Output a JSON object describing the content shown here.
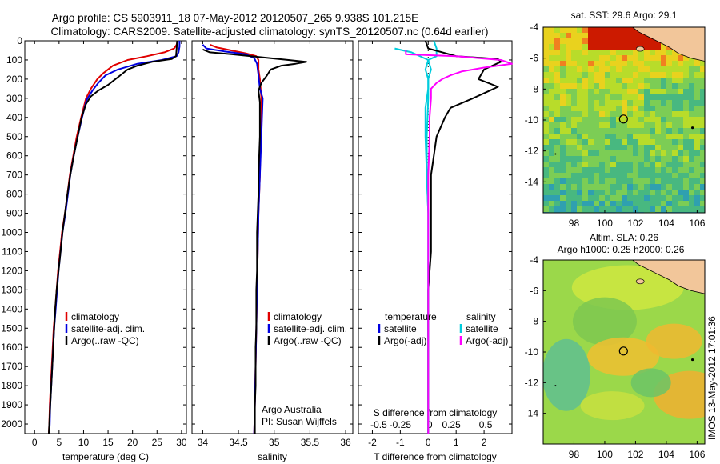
{
  "header": {
    "line1": "Argo profile: CS 5903911_18 07-May-2012 20120507_265 9.938S 101.215E",
    "line2": "Climatology: CARS2009. Satellite-adjusted climatology: synTS_20120507.nc (0.64d earlier)"
  },
  "footer_vertical": "IMOS 13-May-2012 17:01:36",
  "colors": {
    "climatology": "#e00000",
    "satellite": "#0000e0",
    "argo": "#000000",
    "argo_salinity": "#ff00ff",
    "satellite_salinity": "#00e0e0"
  },
  "chart_data": [
    {
      "type": "line",
      "xlabel": "temperature (deg C)",
      "ylabel": "",
      "xlim": [
        -2,
        31
      ],
      "ylim": [
        2050,
        0
      ],
      "xticks": [
        0,
        5,
        10,
        15,
        20,
        25,
        30
      ],
      "yticks": [
        0,
        100,
        200,
        300,
        400,
        500,
        600,
        700,
        800,
        900,
        1000,
        1100,
        1200,
        1300,
        1400,
        1500,
        1600,
        1700,
        1800,
        1900,
        2000
      ],
      "legend": [
        "climatology",
        "satellite-adj. clim.",
        "Argo(..raw -QC)"
      ],
      "series": [
        {
          "name": "climatology",
          "points": [
            [
              29.2,
              0
            ],
            [
              29.0,
              20
            ],
            [
              28.5,
              40
            ],
            [
              26.5,
              60
            ],
            [
              23,
              80
            ],
            [
              19,
              100
            ],
            [
              16,
              130
            ],
            [
              14,
              170
            ],
            [
              12.8,
              200
            ],
            [
              11.5,
              250
            ],
            [
              10.5,
              300
            ],
            [
              9.5,
              400
            ],
            [
              8.6,
              500
            ],
            [
              7.9,
              600
            ],
            [
              7.2,
              700
            ],
            [
              6.7,
              800
            ],
            [
              6.2,
              900
            ],
            [
              5.6,
              1000
            ],
            [
              5.2,
              1100
            ],
            [
              4.8,
              1200
            ],
            [
              4.5,
              1300
            ],
            [
              4.2,
              1400
            ],
            [
              3.9,
              1500
            ],
            [
              3.7,
              1600
            ],
            [
              3.5,
              1700
            ],
            [
              3.3,
              1800
            ],
            [
              3.1,
              1900
            ],
            [
              3.0,
              2000
            ],
            [
              2.9,
              2050
            ]
          ]
        },
        {
          "name": "satellite-adj. clim.",
          "points": [
            [
              29.6,
              0
            ],
            [
              29.6,
              30
            ],
            [
              29.4,
              60
            ],
            [
              29,
              80
            ],
            [
              26,
              100
            ],
            [
              21,
              120
            ],
            [
              17,
              150
            ],
            [
              14.5,
              180
            ],
            [
              13,
              220
            ],
            [
              11.8,
              260
            ],
            [
              10.6,
              310
            ],
            [
              9.7,
              400
            ],
            [
              8.8,
              500
            ],
            [
              8.0,
              600
            ],
            [
              7.3,
              700
            ],
            [
              6.8,
              800
            ],
            [
              6.3,
              900
            ],
            [
              5.7,
              1000
            ],
            [
              5.3,
              1100
            ],
            [
              4.9,
              1200
            ],
            [
              4.6,
              1300
            ],
            [
              4.3,
              1400
            ],
            [
              4.0,
              1500
            ],
            [
              3.8,
              1600
            ],
            [
              3.6,
              1700
            ],
            [
              3.4,
              1800
            ],
            [
              3.2,
              1900
            ],
            [
              3.1,
              2000
            ],
            [
              3.0,
              2050
            ]
          ]
        },
        {
          "name": "Argo(..raw -QC)",
          "points": [
            [
              29.1,
              0
            ],
            [
              29.0,
              40
            ],
            [
              28.9,
              80
            ],
            [
              28,
              95
            ],
            [
              24,
              110
            ],
            [
              21,
              130
            ],
            [
              19,
              150
            ],
            [
              17.5,
              180
            ],
            [
              16,
              210
            ],
            [
              15,
              230
            ],
            [
              13,
              260
            ],
            [
              11.5,
              290
            ],
            [
              10.5,
              330
            ],
            [
              9.6,
              400
            ],
            [
              8.8,
              500
            ],
            [
              8.0,
              600
            ],
            [
              7.3,
              700
            ],
            [
              6.7,
              800
            ],
            [
              6.2,
              900
            ],
            [
              5.7,
              1000
            ],
            [
              5.3,
              1100
            ],
            [
              4.9,
              1200
            ],
            [
              4.5,
              1300
            ],
            [
              4.2,
              1400
            ],
            [
              4.0,
              1500
            ],
            [
              3.8,
              1600
            ],
            [
              3.6,
              1700
            ],
            [
              3.4,
              1800
            ],
            [
              3.2,
              1900
            ],
            [
              3.0,
              2000
            ],
            [
              2.9,
              2050
            ]
          ]
        }
      ]
    },
    {
      "type": "line",
      "xlabel": "salinity",
      "xlim": [
        33.85,
        36.1
      ],
      "ylim": [
        2050,
        0
      ],
      "xticks": [
        34,
        34.5,
        35,
        35.5,
        36
      ],
      "legend": [
        "climatology",
        "satellite-adj. clim.",
        "Argo(..raw -QC)"
      ],
      "annotation": [
        "Argo Australia",
        "PI: Susan Wijffels"
      ],
      "series": [
        {
          "name": "climatology",
          "points": [
            [
              34.1,
              20
            ],
            [
              34.2,
              35
            ],
            [
              34.4,
              50
            ],
            [
              34.6,
              65
            ],
            [
              34.75,
              80
            ],
            [
              34.78,
              100
            ],
            [
              34.78,
              150
            ],
            [
              34.8,
              200
            ],
            [
              34.82,
              300
            ],
            [
              34.82,
              400
            ],
            [
              34.81,
              500
            ],
            [
              34.8,
              700
            ],
            [
              34.78,
              900
            ],
            [
              34.77,
              1100
            ],
            [
              34.76,
              1300
            ],
            [
              34.75,
              1500
            ],
            [
              34.74,
              1700
            ],
            [
              34.73,
              1900
            ],
            [
              34.72,
              2050
            ]
          ]
        },
        {
          "name": "satellite-adj. clim.",
          "points": [
            [
              34.0,
              20
            ],
            [
              34.05,
              40
            ],
            [
              34.3,
              55
            ],
            [
              34.6,
              70
            ],
            [
              34.72,
              90
            ],
            [
              34.76,
              120
            ],
            [
              34.78,
              180
            ],
            [
              34.8,
              250
            ],
            [
              34.84,
              300
            ],
            [
              34.83,
              400
            ],
            [
              34.82,
              500
            ],
            [
              34.8,
              700
            ],
            [
              34.78,
              900
            ],
            [
              34.77,
              1100
            ],
            [
              34.76,
              1300
            ],
            [
              34.75,
              1500
            ],
            [
              34.74,
              1700
            ],
            [
              34.73,
              1900
            ],
            [
              34.72,
              2050
            ]
          ]
        },
        {
          "name": "Argo(..raw -QC)",
          "points": [
            [
              34.0,
              45
            ],
            [
              34.1,
              60
            ],
            [
              34.4,
              70
            ],
            [
              34.8,
              85
            ],
            [
              35.2,
              100
            ],
            [
              35.45,
              110
            ],
            [
              35.3,
              120
            ],
            [
              35.1,
              130
            ],
            [
              34.95,
              150
            ],
            [
              34.9,
              180
            ],
            [
              34.82,
              220
            ],
            [
              34.78,
              260
            ],
            [
              34.8,
              320
            ],
            [
              34.8,
              400
            ],
            [
              34.8,
              500
            ],
            [
              34.79,
              600
            ],
            [
              34.78,
              700
            ],
            [
              34.78,
              800
            ],
            [
              34.77,
              900
            ],
            [
              34.76,
              1000
            ],
            [
              34.76,
              1100
            ],
            [
              34.76,
              1200
            ],
            [
              34.75,
              1300
            ],
            [
              34.75,
              1400
            ],
            [
              34.75,
              1500
            ],
            [
              34.74,
              1600
            ],
            [
              34.74,
              1700
            ],
            [
              34.74,
              1800
            ],
            [
              34.73,
              1900
            ],
            [
              34.73,
              2000
            ],
            [
              34.73,
              2050
            ]
          ]
        }
      ]
    },
    {
      "type": "line",
      "xlabel": "T difference from climatology",
      "xlabel_top": "S difference from climatology",
      "xlim": [
        -2.5,
        3.0
      ],
      "ylim": [
        2050,
        0
      ],
      "xticks": [
        -2,
        -1,
        0,
        1,
        2
      ],
      "xticks_top": [
        "-0.5",
        "-0.25",
        "0",
        "0.25",
        "0.5"
      ],
      "legend_left": {
        "heading": "temperature",
        "items": [
          "satellite",
          "Argo(-adj)"
        ]
      },
      "legend_right": {
        "heading": "salinity",
        "items": [
          "satellite",
          "Argo(-adj)"
        ]
      },
      "series": [
        {
          "name": "temperature satellite",
          "points": [
            [
              0.2,
              0
            ],
            [
              0.3,
              40
            ],
            [
              0.3,
              80
            ],
            [
              0,
              100
            ],
            [
              -0.1,
              150
            ],
            [
              0,
              200
            ],
            [
              0,
              250
            ],
            [
              -0.1,
              350
            ],
            [
              -0.1,
              500
            ],
            [
              -0.05,
              700
            ],
            [
              0,
              900
            ],
            [
              0,
              1100
            ],
            [
              0,
              1300
            ],
            [
              0,
              1500
            ],
            [
              0,
              1700
            ],
            [
              0,
              1900
            ],
            [
              0,
              2050
            ]
          ]
        },
        {
          "name": "temperature Argo(-adj)",
          "points": [
            [
              -0.1,
              0
            ],
            [
              0,
              40
            ],
            [
              1,
              80
            ],
            [
              2.5,
              95
            ],
            [
              2.6,
              110
            ],
            [
              2,
              150
            ],
            [
              1.8,
              200
            ],
            [
              2.5,
              240
            ],
            [
              2.2,
              260
            ],
            [
              1.6,
              300
            ],
            [
              0.8,
              350
            ],
            [
              0.6,
              400
            ],
            [
              0.3,
              500
            ],
            [
              0.2,
              600
            ],
            [
              0.1,
              700
            ],
            [
              0.1,
              900
            ],
            [
              0.1,
              1100
            ],
            [
              0,
              1300
            ],
            [
              0,
              1500
            ],
            [
              0,
              1700
            ],
            [
              0,
              1900
            ],
            [
              0,
              2050
            ]
          ]
        },
        {
          "name": "salinity satellite",
          "points": [
            [
              -1.2,
              40
            ],
            [
              -0.6,
              60
            ],
            [
              0,
              100
            ],
            [
              0.1,
              150
            ],
            [
              0,
              200
            ],
            [
              0,
              300
            ],
            [
              -0.05,
              500
            ],
            [
              -0.05,
              700
            ],
            [
              0,
              900
            ],
            [
              0,
              1100
            ],
            [
              0,
              1300
            ],
            [
              0,
              1500
            ],
            [
              0,
              1700
            ],
            [
              0,
              1900
            ],
            [
              0,
              2050
            ]
          ]
        },
        {
          "name": "salinity Argo(-adj)",
          "points": [
            [
              -0.8,
              50
            ],
            [
              -0.8,
              70
            ],
            [
              1,
              80
            ],
            [
              2.6,
              100
            ],
            [
              3.0,
              120
            ],
            [
              2.0,
              140
            ],
            [
              1.2,
              160
            ],
            [
              0.8,
              180
            ],
            [
              0.5,
              200
            ],
            [
              0.3,
              220
            ],
            [
              0.1,
              250
            ],
            [
              0.1,
              300
            ],
            [
              0.05,
              400
            ],
            [
              0.05,
              500
            ],
            [
              0,
              700
            ],
            [
              0,
              900
            ],
            [
              0,
              1100
            ],
            [
              0,
              1300
            ],
            [
              0,
              1500
            ],
            [
              0,
              1700
            ],
            [
              0,
              1900
            ],
            [
              0,
              2050
            ]
          ]
        }
      ]
    },
    {
      "type": "heatmap",
      "title": "sat. SST: 29.6 Argo: 29.1",
      "xlim": [
        96,
        106.5
      ],
      "ylim": [
        -16,
        -4
      ],
      "xticks": [
        98,
        100,
        102,
        104,
        106
      ],
      "yticks": [
        -4,
        -6,
        -8,
        -10,
        -12,
        -14
      ],
      "marker": {
        "lon": 101.215,
        "lat": -9.938
      }
    },
    {
      "type": "heatmap",
      "title": "Altim. SLA: 0.26",
      "subtitle": "Argo h1000: 0.25 h2000: 0.26",
      "xlim": [
        96,
        106.5
      ],
      "ylim": [
        -16,
        -4
      ],
      "xticks": [
        98,
        100,
        102,
        104,
        106
      ],
      "yticks": [
        -4,
        -6,
        -8,
        -10,
        -12,
        -14
      ],
      "marker": {
        "lon": 101.215,
        "lat": -9.938
      }
    }
  ]
}
